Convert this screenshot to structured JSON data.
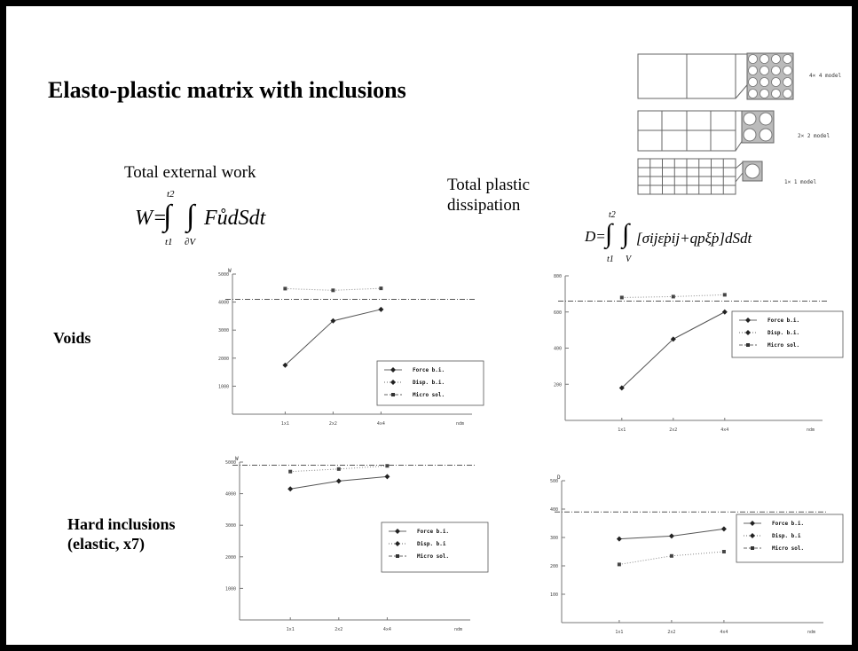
{
  "slide": {
    "title": "Elasto-plastic matrix with inclusions",
    "work_caption": "Total external work",
    "dissipation_caption": [
      "Total plastic",
      "dissipation"
    ],
    "row_labels": {
      "voids": "Voids",
      "hard_line1": "Hard inclusions",
      "hard_line2": "(elastic, x7)"
    },
    "formula_work": {
      "lhs": "W=",
      "upper": "t2",
      "lower1": "t1",
      "lower2": "∂V",
      "integrand": "FůdSdt"
    },
    "formula_dissipation": {
      "lhs": "D=",
      "upper": "t2",
      "lower1": "t1",
      "lower2": "V",
      "integrand": "[σijε̇pij+qpξ̇p]dSdt"
    }
  },
  "model_diagram": {
    "labels": [
      "4× 4 model",
      "2× 2 model",
      "1× 1 model"
    ]
  },
  "chart_data": [
    {
      "id": "voids-work",
      "type": "line",
      "title": "",
      "ylabel": "W",
      "xlabel": "ndm",
      "categories": [
        "1x1",
        "2x2",
        "4x4"
      ],
      "tick_labels_x": [
        "1x1",
        "2x2",
        "4x4"
      ],
      "yticks": [
        1000,
        2000,
        3000,
        4000,
        5000
      ],
      "ylim": [
        0,
        5000
      ],
      "reference_value": 4100,
      "legend": [
        "Force b.i.",
        "Disp. b.i.",
        "Micro sol."
      ],
      "legend_position": "bottom-right",
      "series": [
        {
          "name": "Force b.i.",
          "values": [
            1750,
            3330,
            3740
          ]
        },
        {
          "name": "Disp. b.i.",
          "values": [
            4480,
            4420,
            4490
          ]
        }
      ]
    },
    {
      "id": "voids-dissipation",
      "type": "line",
      "title": "",
      "ylabel": "",
      "xlabel": "ndm",
      "categories": [
        "1x1",
        "2x2",
        "4x4"
      ],
      "tick_labels_x": [
        "1x1",
        "2x2",
        "4x4"
      ],
      "yticks": [
        200,
        400,
        600,
        800
      ],
      "ylim": [
        0,
        800
      ],
      "reference_value": 660,
      "legend": [
        "Force b.i.",
        "Disp. b.i.",
        "Micro sol."
      ],
      "legend_position": "top-right",
      "series": [
        {
          "name": "Force b.i.",
          "values": [
            180,
            450,
            600
          ]
        },
        {
          "name": "Disp. b.i.",
          "values": [
            680,
            685,
            695
          ]
        }
      ]
    },
    {
      "id": "hard-work",
      "type": "line",
      "title": "",
      "ylabel": "W",
      "xlabel": "ndm",
      "categories": [
        "1x1",
        "2x2",
        "4x4"
      ],
      "tick_labels_x": [
        "1x1",
        "2x2",
        "4x4"
      ],
      "yticks": [
        1000,
        2000,
        3000,
        4000,
        5000
      ],
      "ylim": [
        0,
        5000
      ],
      "reference_value": 4900,
      "legend": [
        "Force b.i.",
        "Disp. b.i",
        "Micro sol."
      ],
      "legend_position": "bottom-right",
      "series": [
        {
          "name": "Force b.i.",
          "values": [
            4150,
            4400,
            4540
          ]
        },
        {
          "name": "Disp. b.i",
          "values": [
            4700,
            4780,
            4880
          ]
        }
      ]
    },
    {
      "id": "hard-dissipation",
      "type": "line",
      "title": "",
      "ylabel": "D",
      "xlabel": "ndm",
      "categories": [
        "1x1",
        "2x2",
        "4x4"
      ],
      "tick_labels_x": [
        "1x1",
        "2x2",
        "4x4"
      ],
      "yticks": [
        100,
        200,
        300,
        400,
        500
      ],
      "ylim": [
        0,
        500
      ],
      "reference_value": 390,
      "legend": [
        "Force b.i.",
        "Disp. b.i",
        "Micro sol."
      ],
      "legend_position": "top-right",
      "series": [
        {
          "name": "Force b.i.",
          "values": [
            295,
            305,
            330
          ]
        },
        {
          "name": "Disp. b.i",
          "values": [
            205,
            235,
            250
          ]
        }
      ]
    }
  ]
}
